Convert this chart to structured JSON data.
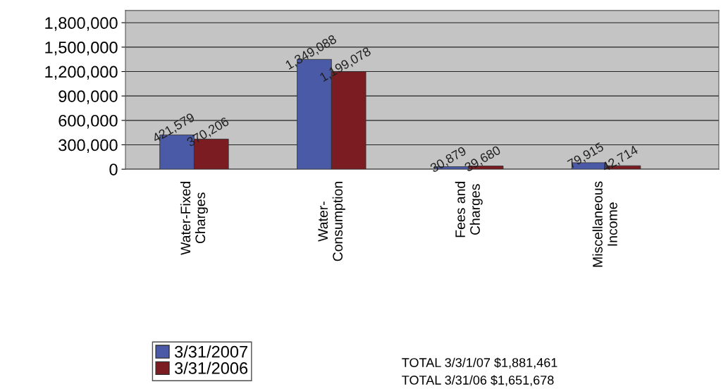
{
  "chart_data": {
    "type": "bar",
    "categories": [
      "Water-Fixed\nCharges",
      "Water-\nConsumption",
      "Fees and\nCharges",
      "Miscellaneous\nIncome"
    ],
    "series": [
      {
        "name": "3/31/2007",
        "color": "#4b5aa6",
        "values": [
          421579,
          1349088,
          30879,
          79915
        ],
        "value_labels": [
          "421,579",
          "1,349,088",
          "30,879",
          "79,915"
        ]
      },
      {
        "name": "3/31/2006",
        "color": "#7a1c22",
        "values": [
          370206,
          1199078,
          39680,
          42714
        ],
        "value_labels": [
          "370,206",
          "1,199,078",
          "39,680",
          "42,714"
        ]
      }
    ],
    "ylim": [
      0,
      1950000
    ],
    "yticks": [
      {
        "value": 0,
        "label": "0"
      },
      {
        "value": 300000,
        "label": "300,000"
      },
      {
        "value": 600000,
        "label": "600,000"
      },
      {
        "value": 900000,
        "label": "900,000"
      },
      {
        "value": 1200000,
        "label": "1,200,000"
      },
      {
        "value": 1500000,
        "label": "1,500,000"
      },
      {
        "value": 1800000,
        "label": "1,800,000"
      }
    ],
    "grid": "y",
    "legend": "bottom",
    "annotations": [
      "TOTAL 3/3/1/07 $1,881,461",
      "TOTAL 3/31/06 $1,651,678"
    ]
  }
}
